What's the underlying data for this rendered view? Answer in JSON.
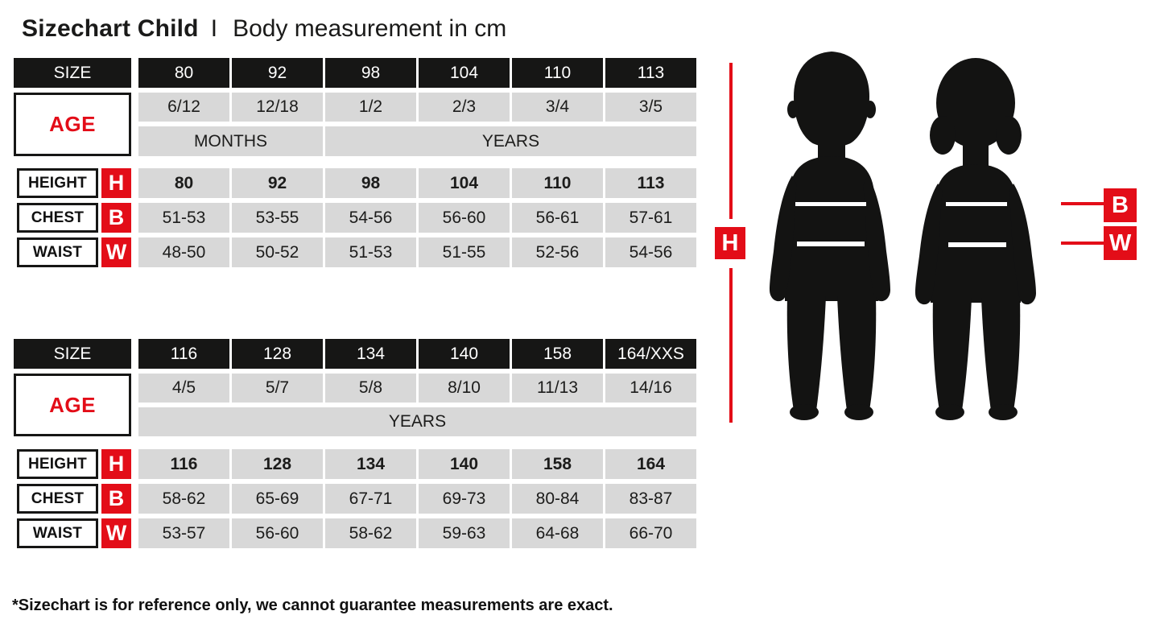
{
  "title": {
    "main": "Sizechart Child",
    "divider": "I",
    "subtitle": "Body measurement in cm"
  },
  "labels": {
    "size": "SIZE",
    "age": "AGE",
    "height": "HEIGHT",
    "chest": "CHEST",
    "waist": "WAIST",
    "height_abbr": "H",
    "chest_abbr": "B",
    "waist_abbr": "W"
  },
  "colors": {
    "accent_red": "#e30d18",
    "header_black": "#161615",
    "cell_grey": "#d8d8d8"
  },
  "tables": [
    {
      "sizes": [
        "80",
        "92",
        "98",
        "104",
        "110",
        "113"
      ],
      "ages": [
        "6/12",
        "12/18",
        "1/2",
        "2/3",
        "3/4",
        "3/5"
      ],
      "age_units": [
        {
          "label": "MONTHS",
          "span": 2
        },
        {
          "label": "YEARS",
          "span": 4
        }
      ],
      "height": [
        "80",
        "92",
        "98",
        "104",
        "110",
        "113"
      ],
      "chest": [
        "51-53",
        "53-55",
        "54-56",
        "56-60",
        "56-61",
        "57-61"
      ],
      "waist": [
        "48-50",
        "50-52",
        "51-53",
        "51-55",
        "52-56",
        "54-56"
      ]
    },
    {
      "sizes": [
        "116",
        "128",
        "134",
        "140",
        "158",
        "164/XXS"
      ],
      "ages": [
        "4/5",
        "5/7",
        "5/8",
        "8/10",
        "11/13",
        "14/16"
      ],
      "age_units": [
        {
          "label": "YEARS",
          "span": 6
        }
      ],
      "height": [
        "116",
        "128",
        "134",
        "140",
        "158",
        "164"
      ],
      "chest": [
        "58-62",
        "65-69",
        "67-71",
        "69-73",
        "80-84",
        "83-87"
      ],
      "waist": [
        "53-57",
        "56-60",
        "58-62",
        "59-63",
        "64-68",
        "66-70"
      ]
    }
  ],
  "footnote": "*Sizechart is for reference only, we cannot guarantee measurements are exact."
}
